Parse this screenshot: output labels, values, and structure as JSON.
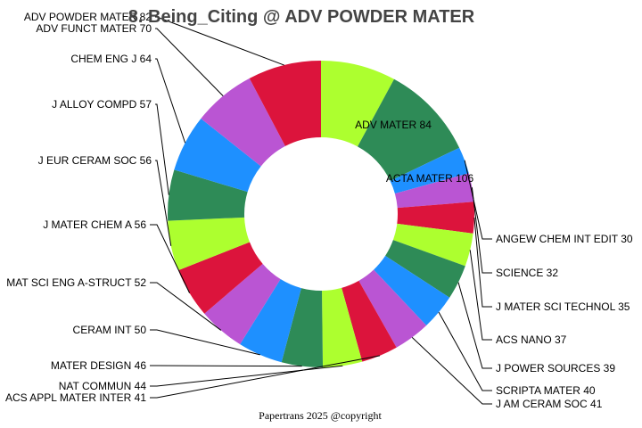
{
  "chart_data": {
    "type": "pie",
    "style": "donut",
    "title": "8. Being_Citing @ ADV POWDER MATER",
    "footer": "Papertrans 2025 @copyright",
    "palette": [
      "#adff2f",
      "#2e8b57",
      "#1e90ff",
      "#ba55d3",
      "#dc143c"
    ],
    "slices": [
      {
        "label": "ADV MATER",
        "value": 84
      },
      {
        "label": "ACTA MATER",
        "value": 106
      },
      {
        "label": "ANGEW CHEM INT EDIT",
        "value": 30
      },
      {
        "label": "SCIENCE",
        "value": 32
      },
      {
        "label": "J MATER SCI TECHNOL",
        "value": 35
      },
      {
        "label": "ACS NANO",
        "value": 37
      },
      {
        "label": "J POWER SOURCES",
        "value": 39
      },
      {
        "label": "SCRIPTA MATER",
        "value": 40
      },
      {
        "label": "J AM CERAM SOC",
        "value": 41
      },
      {
        "label": "ACS APPL MATER INTER",
        "value": 41
      },
      {
        "label": "NAT COMMUN",
        "value": 44
      },
      {
        "label": "MATER DESIGN",
        "value": 46
      },
      {
        "label": "CERAM INT",
        "value": 50
      },
      {
        "label": "MAT SCI ENG A-STRUCT",
        "value": 52
      },
      {
        "label": "J MATER CHEM A",
        "value": 56
      },
      {
        "label": "J EUR CERAM SOC",
        "value": 56
      },
      {
        "label": "J ALLOY COMPD",
        "value": 57
      },
      {
        "label": "CHEM ENG J",
        "value": 64
      },
      {
        "label": "ADV FUNCT MATER",
        "value": 70
      },
      {
        "label": "ADV POWDER MATER",
        "value": 82
      }
    ]
  }
}
